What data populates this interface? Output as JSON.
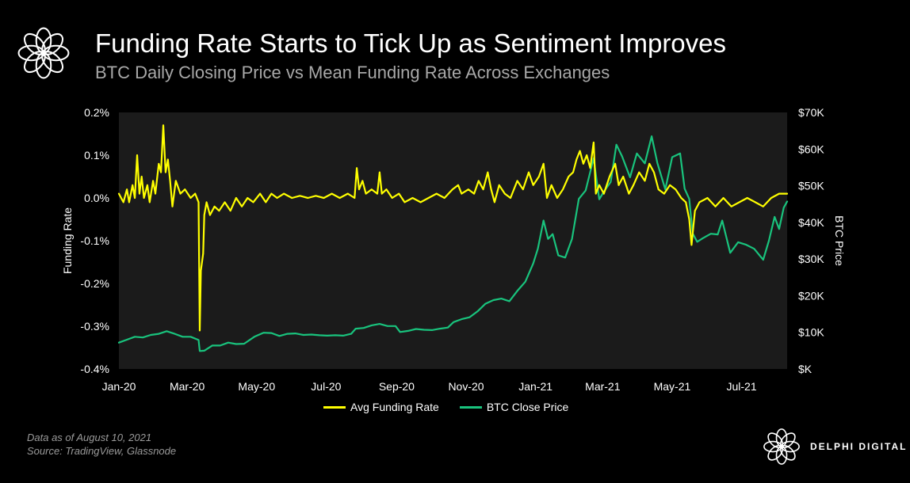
{
  "header": {
    "title": "Funding Rate Starts to Tick Up as Sentiment Improves",
    "subtitle": "BTC Daily Closing Price vs Mean Funding Rate Across Exchanges",
    "logo_icon": "delphi-flower-icon"
  },
  "footer": {
    "note_line1": "Data as of August 10, 2021",
    "note_line2": "Source:  TradingView, Glassnode",
    "brand": "DELPHI DIGITAL",
    "brand_icon": "delphi-flower-icon"
  },
  "colors": {
    "background": "#000000",
    "plot_bg": "#1b1b1b",
    "funding": "#ffff00",
    "btc": "#19c37d"
  },
  "chart_data": {
    "type": "line",
    "x_range": [
      "2020-01-01",
      "2021-08-10"
    ],
    "x_tick_labels": [
      "Jan-20",
      "Mar-20",
      "May-20",
      "Jul-20",
      "Sep-20",
      "Nov-20",
      "Jan-21",
      "Mar-21",
      "May-21",
      "Jul-21"
    ],
    "x_tick_dates": [
      "2020-01-01",
      "2020-03-01",
      "2020-05-01",
      "2020-07-01",
      "2020-09-01",
      "2020-11-01",
      "2021-01-01",
      "2021-03-01",
      "2021-05-01",
      "2021-07-01"
    ],
    "ylabel_left": "Funding Rate",
    "ylabel_right": "BTC Price",
    "y_left_range": [
      -0.4,
      0.2
    ],
    "y_left_unit": "%",
    "y_left_ticks": [
      "0.2%",
      "0.1%",
      "0.0%",
      "-0.1%",
      "-0.2%",
      "-0.3%",
      "-0.4%"
    ],
    "y_right_range": [
      0,
      70000
    ],
    "y_right_ticks": [
      "$70K",
      "$60K",
      "$50K",
      "$40K",
      "$30K",
      "$20K",
      "$10K",
      "$K"
    ],
    "legend_placement": "bottom-center",
    "series": [
      {
        "name": "Avg Funding Rate",
        "axis": "left",
        "color": "#ffff00",
        "points": [
          [
            "2020-01-01",
            0.01
          ],
          [
            "2020-01-05",
            -0.01
          ],
          [
            "2020-01-08",
            0.02
          ],
          [
            "2020-01-10",
            -0.01
          ],
          [
            "2020-01-13",
            0.03
          ],
          [
            "2020-01-15",
            0.0
          ],
          [
            "2020-01-17",
            0.1
          ],
          [
            "2020-01-19",
            0.01
          ],
          [
            "2020-01-21",
            0.05
          ],
          [
            "2020-01-23",
            0.0
          ],
          [
            "2020-01-26",
            0.03
          ],
          [
            "2020-01-28",
            -0.01
          ],
          [
            "2020-01-31",
            0.04
          ],
          [
            "2020-02-02",
            0.01
          ],
          [
            "2020-02-05",
            0.08
          ],
          [
            "2020-02-07",
            0.06
          ],
          [
            "2020-02-09",
            0.17
          ],
          [
            "2020-02-11",
            0.06
          ],
          [
            "2020-02-13",
            0.09
          ],
          [
            "2020-02-15",
            0.04
          ],
          [
            "2020-02-17",
            -0.02
          ],
          [
            "2020-02-20",
            0.04
          ],
          [
            "2020-02-24",
            0.01
          ],
          [
            "2020-02-28",
            0.02
          ],
          [
            "2020-03-04",
            0.0
          ],
          [
            "2020-03-08",
            0.01
          ],
          [
            "2020-03-11",
            -0.01
          ],
          [
            "2020-03-12",
            -0.31
          ],
          [
            "2020-03-13",
            -0.17
          ],
          [
            "2020-03-15",
            -0.13
          ],
          [
            "2020-03-16",
            -0.04
          ],
          [
            "2020-03-18",
            -0.01
          ],
          [
            "2020-03-21",
            -0.04
          ],
          [
            "2020-03-25",
            -0.02
          ],
          [
            "2020-03-29",
            -0.03
          ],
          [
            "2020-04-03",
            -0.01
          ],
          [
            "2020-04-08",
            -0.03
          ],
          [
            "2020-04-13",
            0.0
          ],
          [
            "2020-04-18",
            -0.02
          ],
          [
            "2020-04-23",
            0.0
          ],
          [
            "2020-04-28",
            -0.01
          ],
          [
            "2020-05-04",
            0.01
          ],
          [
            "2020-05-09",
            -0.01
          ],
          [
            "2020-05-14",
            0.01
          ],
          [
            "2020-05-19",
            0.0
          ],
          [
            "2020-05-25",
            0.01
          ],
          [
            "2020-06-01",
            0.0
          ],
          [
            "2020-06-08",
            0.005
          ],
          [
            "2020-06-15",
            0.0
          ],
          [
            "2020-06-22",
            0.005
          ],
          [
            "2020-06-29",
            0.0
          ],
          [
            "2020-07-06",
            0.01
          ],
          [
            "2020-07-13",
            0.0
          ],
          [
            "2020-07-20",
            0.01
          ],
          [
            "2020-07-26",
            0.0
          ],
          [
            "2020-07-28",
            0.07
          ],
          [
            "2020-07-30",
            0.02
          ],
          [
            "2020-08-02",
            0.04
          ],
          [
            "2020-08-05",
            0.01
          ],
          [
            "2020-08-10",
            0.02
          ],
          [
            "2020-08-15",
            0.01
          ],
          [
            "2020-08-17",
            0.06
          ],
          [
            "2020-08-19",
            0.01
          ],
          [
            "2020-08-23",
            0.02
          ],
          [
            "2020-08-28",
            0.0
          ],
          [
            "2020-09-03",
            0.01
          ],
          [
            "2020-09-08",
            -0.01
          ],
          [
            "2020-09-15",
            0.0
          ],
          [
            "2020-09-22",
            -0.01
          ],
          [
            "2020-09-29",
            0.0
          ],
          [
            "2020-10-06",
            0.01
          ],
          [
            "2020-10-13",
            0.0
          ],
          [
            "2020-10-20",
            0.02
          ],
          [
            "2020-10-25",
            0.03
          ],
          [
            "2020-10-28",
            0.01
          ],
          [
            "2020-11-03",
            0.02
          ],
          [
            "2020-11-08",
            0.01
          ],
          [
            "2020-11-12",
            0.04
          ],
          [
            "2020-11-16",
            0.02
          ],
          [
            "2020-11-20",
            0.06
          ],
          [
            "2020-11-23",
            0.02
          ],
          [
            "2020-11-26",
            -0.01
          ],
          [
            "2020-11-30",
            0.03
          ],
          [
            "2020-12-05",
            0.01
          ],
          [
            "2020-12-10",
            0.0
          ],
          [
            "2020-12-16",
            0.04
          ],
          [
            "2020-12-21",
            0.02
          ],
          [
            "2020-12-26",
            0.06
          ],
          [
            "2020-12-30",
            0.03
          ],
          [
            "2021-01-04",
            0.05
          ],
          [
            "2021-01-08",
            0.08
          ],
          [
            "2021-01-11",
            0.0
          ],
          [
            "2021-01-15",
            0.03
          ],
          [
            "2021-01-20",
            0.0
          ],
          [
            "2021-01-25",
            0.02
          ],
          [
            "2021-01-30",
            0.05
          ],
          [
            "2021-02-03",
            0.06
          ],
          [
            "2021-02-06",
            0.09
          ],
          [
            "2021-02-09",
            0.11
          ],
          [
            "2021-02-12",
            0.08
          ],
          [
            "2021-02-15",
            0.1
          ],
          [
            "2021-02-18",
            0.07
          ],
          [
            "2021-02-21",
            0.13
          ],
          [
            "2021-02-23",
            0.01
          ],
          [
            "2021-02-26",
            0.03
          ],
          [
            "2021-03-02",
            0.01
          ],
          [
            "2021-03-07",
            0.05
          ],
          [
            "2021-03-12",
            0.08
          ],
          [
            "2021-03-15",
            0.03
          ],
          [
            "2021-03-19",
            0.05
          ],
          [
            "2021-03-24",
            0.01
          ],
          [
            "2021-03-28",
            0.03
          ],
          [
            "2021-04-02",
            0.06
          ],
          [
            "2021-04-07",
            0.04
          ],
          [
            "2021-04-11",
            0.08
          ],
          [
            "2021-04-15",
            0.06
          ],
          [
            "2021-04-19",
            0.02
          ],
          [
            "2021-04-24",
            0.01
          ],
          [
            "2021-04-29",
            0.03
          ],
          [
            "2021-05-04",
            0.02
          ],
          [
            "2021-05-09",
            0.0
          ],
          [
            "2021-05-13",
            -0.01
          ],
          [
            "2021-05-16",
            -0.05
          ],
          [
            "2021-05-18",
            -0.11
          ],
          [
            "2021-05-21",
            -0.03
          ],
          [
            "2021-05-25",
            -0.01
          ],
          [
            "2021-06-01",
            0.0
          ],
          [
            "2021-06-08",
            -0.02
          ],
          [
            "2021-06-15",
            0.0
          ],
          [
            "2021-06-22",
            -0.02
          ],
          [
            "2021-06-29",
            -0.01
          ],
          [
            "2021-07-06",
            0.0
          ],
          [
            "2021-07-13",
            -0.01
          ],
          [
            "2021-07-20",
            -0.02
          ],
          [
            "2021-07-27",
            0.0
          ],
          [
            "2021-08-03",
            0.01
          ],
          [
            "2021-08-10",
            0.01
          ]
        ]
      },
      {
        "name": "BTC Close Price",
        "axis": "right",
        "color": "#19c37d",
        "points": [
          [
            "2020-01-01",
            7200
          ],
          [
            "2020-01-08",
            8000
          ],
          [
            "2020-01-15",
            8800
          ],
          [
            "2020-01-22",
            8600
          ],
          [
            "2020-01-29",
            9300
          ],
          [
            "2020-02-05",
            9600
          ],
          [
            "2020-02-12",
            10300
          ],
          [
            "2020-02-19",
            9600
          ],
          [
            "2020-02-26",
            8800
          ],
          [
            "2020-03-04",
            8800
          ],
          [
            "2020-03-11",
            7900
          ],
          [
            "2020-03-12",
            4900
          ],
          [
            "2020-03-16",
            5000
          ],
          [
            "2020-03-23",
            6400
          ],
          [
            "2020-03-30",
            6400
          ],
          [
            "2020-04-06",
            7200
          ],
          [
            "2020-04-13",
            6800
          ],
          [
            "2020-04-20",
            6900
          ],
          [
            "2020-04-29",
            8800
          ],
          [
            "2020-05-07",
            9900
          ],
          [
            "2020-05-14",
            9800
          ],
          [
            "2020-05-21",
            9000
          ],
          [
            "2020-05-28",
            9600
          ],
          [
            "2020-06-04",
            9700
          ],
          [
            "2020-06-11",
            9300
          ],
          [
            "2020-06-18",
            9400
          ],
          [
            "2020-06-25",
            9200
          ],
          [
            "2020-07-02",
            9100
          ],
          [
            "2020-07-09",
            9200
          ],
          [
            "2020-07-16",
            9100
          ],
          [
            "2020-07-23",
            9600
          ],
          [
            "2020-07-27",
            11000
          ],
          [
            "2020-08-03",
            11200
          ],
          [
            "2020-08-10",
            11900
          ],
          [
            "2020-08-17",
            12300
          ],
          [
            "2020-08-24",
            11700
          ],
          [
            "2020-08-31",
            11700
          ],
          [
            "2020-09-04",
            10100
          ],
          [
            "2020-09-11",
            10400
          ],
          [
            "2020-09-18",
            10900
          ],
          [
            "2020-09-25",
            10700
          ],
          [
            "2020-10-02",
            10600
          ],
          [
            "2020-10-09",
            11000
          ],
          [
            "2020-10-16",
            11300
          ],
          [
            "2020-10-21",
            12800
          ],
          [
            "2020-10-28",
            13600
          ],
          [
            "2020-11-04",
            14100
          ],
          [
            "2020-11-11",
            15700
          ],
          [
            "2020-11-18",
            17800
          ],
          [
            "2020-11-25",
            18800
          ],
          [
            "2020-12-02",
            19200
          ],
          [
            "2020-12-09",
            18500
          ],
          [
            "2020-12-16",
            21300
          ],
          [
            "2020-12-23",
            23800
          ],
          [
            "2020-12-30",
            28800
          ],
          [
            "2021-01-03",
            32800
          ],
          [
            "2021-01-08",
            40500
          ],
          [
            "2021-01-12",
            35500
          ],
          [
            "2021-01-16",
            36800
          ],
          [
            "2021-01-21",
            31000
          ],
          [
            "2021-01-27",
            30400
          ],
          [
            "2021-02-02",
            35500
          ],
          [
            "2021-02-08",
            46400
          ],
          [
            "2021-02-14",
            48700
          ],
          [
            "2021-02-21",
            57500
          ],
          [
            "2021-02-26",
            46300
          ],
          [
            "2021-03-02",
            48400
          ],
          [
            "2021-03-08",
            51000
          ],
          [
            "2021-03-13",
            61200
          ],
          [
            "2021-03-18",
            58000
          ],
          [
            "2021-03-25",
            52300
          ],
          [
            "2021-03-31",
            58800
          ],
          [
            "2021-04-07",
            56100
          ],
          [
            "2021-04-13",
            63500
          ],
          [
            "2021-04-18",
            56200
          ],
          [
            "2021-04-25",
            49000
          ],
          [
            "2021-05-01",
            57800
          ],
          [
            "2021-05-08",
            58800
          ],
          [
            "2021-05-12",
            49200
          ],
          [
            "2021-05-16",
            46400
          ],
          [
            "2021-05-19",
            37000
          ],
          [
            "2021-05-23",
            34700
          ],
          [
            "2021-05-28",
            35700
          ],
          [
            "2021-06-04",
            36900
          ],
          [
            "2021-06-10",
            36700
          ],
          [
            "2021-06-14",
            40500
          ],
          [
            "2021-06-21",
            31700
          ],
          [
            "2021-06-28",
            34600
          ],
          [
            "2021-07-05",
            33900
          ],
          [
            "2021-07-12",
            32800
          ],
          [
            "2021-07-20",
            29800
          ],
          [
            "2021-07-25",
            35000
          ],
          [
            "2021-07-30",
            41500
          ],
          [
            "2021-08-03",
            38200
          ],
          [
            "2021-08-07",
            44000
          ],
          [
            "2021-08-10",
            45700
          ]
        ]
      }
    ]
  }
}
